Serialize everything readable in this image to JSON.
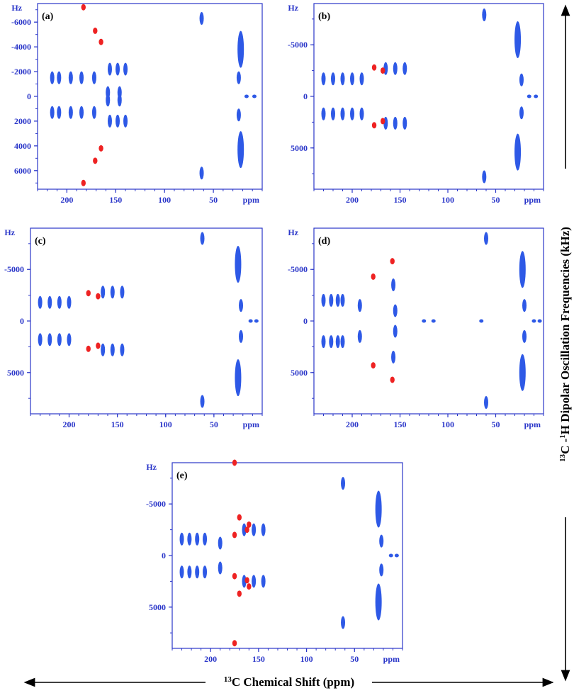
{
  "colors": {
    "axis": "#2a36c9",
    "tick_text": "#2a36c9",
    "blue_peaks": "#2e59e6",
    "red_peaks": "#ee2222",
    "black": "#000000"
  },
  "figure": {
    "x_axis_title": "C Chemical Shift (ppm)",
    "x_axis_title_sup": "13",
    "y_axis_title_sup1": "13",
    "y_axis_title_mid": "C -",
    "y_axis_title_sup2": "1",
    "y_axis_title_rest": "H Dipolar Oscillation Frequencies (kHz)"
  },
  "chart_data": [
    {
      "panel_label": "(a)",
      "type": "scatter",
      "y_unit_label": "Hz",
      "x_unit_label": "ppm",
      "x_ticks": [
        "200",
        "150",
        "100",
        "50"
      ],
      "y_ticks": [
        "-6000",
        "-4000",
        "-2000",
        "0",
        "2000",
        "4000",
        "6000"
      ],
      "xlim": [
        230,
        0
      ],
      "ylim": [
        -7500,
        7500
      ],
      "y_tick_values": [
        -6000,
        -4000,
        -2000,
        0,
        2000,
        4000,
        6000
      ],
      "peaks_blue": [
        {
          "x": 215,
          "y": -1500
        },
        {
          "x": 215,
          "y": 1300
        },
        {
          "x": 208,
          "y": -1500
        },
        {
          "x": 208,
          "y": 1300
        },
        {
          "x": 196,
          "y": -1500
        },
        {
          "x": 196,
          "y": 1300
        },
        {
          "x": 185,
          "y": -1500
        },
        {
          "x": 185,
          "y": 1300
        },
        {
          "x": 172,
          "y": -1500
        },
        {
          "x": 172,
          "y": 1300
        },
        {
          "x": 156,
          "y": -2200
        },
        {
          "x": 156,
          "y": 2000
        },
        {
          "x": 148,
          "y": -2200
        },
        {
          "x": 148,
          "y": 2000
        },
        {
          "x": 140,
          "y": -2200
        },
        {
          "x": 140,
          "y": 2000
        },
        {
          "x": 158,
          "y": -300
        },
        {
          "x": 158,
          "y": 300
        },
        {
          "x": 146,
          "y": -300
        },
        {
          "x": 146,
          "y": 300
        },
        {
          "x": 62,
          "y": -6300
        },
        {
          "x": 62,
          "y": 6200
        },
        {
          "x": 22,
          "y": -3800
        },
        {
          "x": 22,
          "y": 4300
        },
        {
          "x": 24,
          "y": -1500
        },
        {
          "x": 24,
          "y": 1500
        },
        {
          "x": 16,
          "y": 0
        },
        {
          "x": 8,
          "y": 0
        }
      ],
      "peaks_red": [
        {
          "x": 183,
          "y": -7200
        },
        {
          "x": 183,
          "y": 7000
        },
        {
          "x": 171,
          "y": -5300
        },
        {
          "x": 171,
          "y": 5200
        },
        {
          "x": 165,
          "y": -4400
        },
        {
          "x": 165,
          "y": 4200
        }
      ]
    },
    {
      "panel_label": "(b)",
      "type": "scatter",
      "y_unit_label": "Hz",
      "x_unit_label": "ppm",
      "x_ticks": [
        "200",
        "150",
        "100",
        "50"
      ],
      "y_ticks": [
        "-5000",
        "0",
        "5000"
      ],
      "xlim": [
        240,
        0
      ],
      "ylim": [
        -9000,
        9000
      ],
      "y_tick_values": [
        -5000,
        0,
        5000
      ],
      "peaks_blue": [
        {
          "x": 230,
          "y": -1700
        },
        {
          "x": 230,
          "y": 1700
        },
        {
          "x": 220,
          "y": -1700
        },
        {
          "x": 220,
          "y": 1700
        },
        {
          "x": 210,
          "y": -1700
        },
        {
          "x": 210,
          "y": 1700
        },
        {
          "x": 200,
          "y": -1700
        },
        {
          "x": 200,
          "y": 1700
        },
        {
          "x": 190,
          "y": -1700
        },
        {
          "x": 190,
          "y": 1700
        },
        {
          "x": 165,
          "y": -2700
        },
        {
          "x": 165,
          "y": 2600
        },
        {
          "x": 155,
          "y": -2700
        },
        {
          "x": 155,
          "y": 2600
        },
        {
          "x": 145,
          "y": -2700
        },
        {
          "x": 145,
          "y": 2600
        },
        {
          "x": 62,
          "y": -7900
        },
        {
          "x": 62,
          "y": 7800
        },
        {
          "x": 27,
          "y": -5500
        },
        {
          "x": 27,
          "y": 5400
        },
        {
          "x": 23,
          "y": -1600
        },
        {
          "x": 23,
          "y": 1600
        },
        {
          "x": 15,
          "y": 0
        },
        {
          "x": 8,
          "y": 0
        }
      ],
      "peaks_red": [
        {
          "x": 177,
          "y": -2800
        },
        {
          "x": 177,
          "y": 2800
        },
        {
          "x": 168,
          "y": -2500
        },
        {
          "x": 168,
          "y": 2400
        }
      ]
    },
    {
      "panel_label": "(c)",
      "type": "scatter",
      "y_unit_label": "Hz",
      "x_unit_label": "ppm",
      "x_ticks": [
        "200",
        "150",
        "100",
        "50"
      ],
      "y_ticks": [
        "-5000",
        "0",
        "5000"
      ],
      "xlim": [
        240,
        0
      ],
      "ylim": [
        -9000,
        9000
      ],
      "y_tick_values": [
        -5000,
        0,
        5000
      ],
      "peaks_blue": [
        {
          "x": 230,
          "y": -1800
        },
        {
          "x": 230,
          "y": 1800
        },
        {
          "x": 220,
          "y": -1800
        },
        {
          "x": 220,
          "y": 1800
        },
        {
          "x": 210,
          "y": -1800
        },
        {
          "x": 210,
          "y": 1800
        },
        {
          "x": 200,
          "y": -1800
        },
        {
          "x": 200,
          "y": 1800
        },
        {
          "x": 165,
          "y": -2800
        },
        {
          "x": 165,
          "y": 2800
        },
        {
          "x": 155,
          "y": -2800
        },
        {
          "x": 155,
          "y": 2800
        },
        {
          "x": 145,
          "y": -2800
        },
        {
          "x": 145,
          "y": 2800
        },
        {
          "x": 62,
          "y": -8000
        },
        {
          "x": 62,
          "y": 7800
        },
        {
          "x": 25,
          "y": -5500
        },
        {
          "x": 25,
          "y": 5500
        },
        {
          "x": 22,
          "y": -1500
        },
        {
          "x": 22,
          "y": 1500
        },
        {
          "x": 12,
          "y": 0
        },
        {
          "x": 6,
          "y": 0
        }
      ],
      "peaks_red": [
        {
          "x": 180,
          "y": -2700
        },
        {
          "x": 180,
          "y": 2700
        },
        {
          "x": 170,
          "y": -2400
        },
        {
          "x": 170,
          "y": 2400
        }
      ]
    },
    {
      "panel_label": "(d)",
      "type": "scatter",
      "y_unit_label": "Hz",
      "x_unit_label": "ppm",
      "x_ticks": [
        "200",
        "150",
        "100",
        "50"
      ],
      "y_ticks": [
        "-5000",
        "0",
        "5000"
      ],
      "xlim": [
        240,
        0
      ],
      "ylim": [
        -9000,
        9000
      ],
      "y_tick_values": [
        -5000,
        0,
        5000
      ],
      "peaks_blue": [
        {
          "x": 230,
          "y": -2000
        },
        {
          "x": 230,
          "y": 2000
        },
        {
          "x": 222,
          "y": -2000
        },
        {
          "x": 222,
          "y": 2000
        },
        {
          "x": 215,
          "y": -2000
        },
        {
          "x": 215,
          "y": 2000
        },
        {
          "x": 210,
          "y": -2000
        },
        {
          "x": 210,
          "y": 2000
        },
        {
          "x": 192,
          "y": -1500
        },
        {
          "x": 192,
          "y": 1500
        },
        {
          "x": 157,
          "y": -3500
        },
        {
          "x": 157,
          "y": 3500
        },
        {
          "x": 155,
          "y": -1000
        },
        {
          "x": 155,
          "y": 1000
        },
        {
          "x": 125,
          "y": 0
        },
        {
          "x": 115,
          "y": 0
        },
        {
          "x": 65,
          "y": 0
        },
        {
          "x": 60,
          "y": -8000
        },
        {
          "x": 60,
          "y": 7900
        },
        {
          "x": 22,
          "y": -5000
        },
        {
          "x": 22,
          "y": 5000
        },
        {
          "x": 20,
          "y": -1500
        },
        {
          "x": 20,
          "y": 1500
        },
        {
          "x": 10,
          "y": 0
        },
        {
          "x": 4,
          "y": 0
        }
      ],
      "peaks_red": [
        {
          "x": 178,
          "y": -4300
        },
        {
          "x": 178,
          "y": 4300
        },
        {
          "x": 158,
          "y": -5800
        },
        {
          "x": 158,
          "y": 5700
        }
      ]
    },
    {
      "panel_label": "(e)",
      "type": "scatter",
      "y_unit_label": "Hz",
      "x_unit_label": "ppm",
      "x_ticks": [
        "200",
        "150",
        "100",
        "50"
      ],
      "y_ticks": [
        "-5000",
        "0",
        "5000"
      ],
      "xlim": [
        240,
        0
      ],
      "ylim": [
        -9000,
        9000
      ],
      "y_tick_values": [
        -5000,
        0,
        5000
      ],
      "peaks_blue": [
        {
          "x": 230,
          "y": -1600
        },
        {
          "x": 230,
          "y": 1600
        },
        {
          "x": 222,
          "y": -1600
        },
        {
          "x": 222,
          "y": 1600
        },
        {
          "x": 214,
          "y": -1600
        },
        {
          "x": 214,
          "y": 1600
        },
        {
          "x": 206,
          "y": -1600
        },
        {
          "x": 206,
          "y": 1600
        },
        {
          "x": 190,
          "y": -1200
        },
        {
          "x": 190,
          "y": 1200
        },
        {
          "x": 165,
          "y": -2500
        },
        {
          "x": 165,
          "y": 2500
        },
        {
          "x": 155,
          "y": -2500
        },
        {
          "x": 155,
          "y": 2500
        },
        {
          "x": 145,
          "y": -2500
        },
        {
          "x": 145,
          "y": 2500
        },
        {
          "x": 62,
          "y": -7000
        },
        {
          "x": 62,
          "y": 6500
        },
        {
          "x": 25,
          "y": -4500
        },
        {
          "x": 25,
          "y": 4500
        },
        {
          "x": 22,
          "y": -1400
        },
        {
          "x": 22,
          "y": 1400
        },
        {
          "x": 12,
          "y": 0
        },
        {
          "x": 6,
          "y": 0
        }
      ],
      "peaks_red": [
        {
          "x": 175,
          "y": -9000
        },
        {
          "x": 175,
          "y": 8500
        },
        {
          "x": 175,
          "y": -2000
        },
        {
          "x": 175,
          "y": 2000
        },
        {
          "x": 170,
          "y": -3700
        },
        {
          "x": 170,
          "y": 3700
        },
        {
          "x": 162,
          "y": -2500
        },
        {
          "x": 162,
          "y": 2400
        },
        {
          "x": 160,
          "y": -3000
        },
        {
          "x": 160,
          "y": 3000
        }
      ]
    }
  ]
}
